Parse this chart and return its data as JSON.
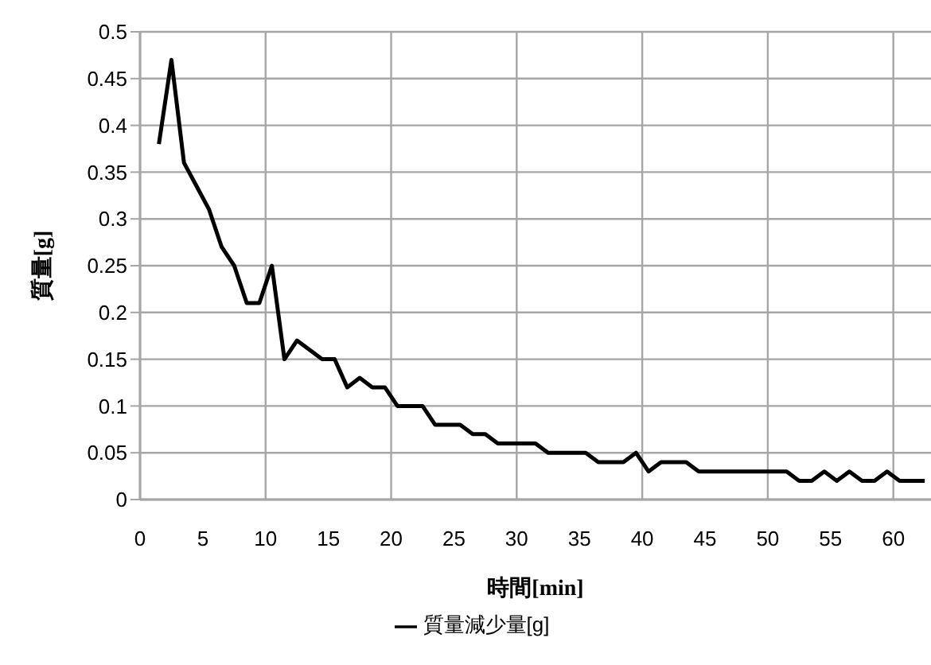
{
  "chart_data": {
    "type": "line",
    "xlabel": "時間[min]",
    "ylabel": "質量[g]",
    "x": [
      1.5,
      2.5,
      3.5,
      4.5,
      5.5,
      6.5,
      7.5,
      8.5,
      9.5,
      10.5,
      11.5,
      12.5,
      13.5,
      14.5,
      15.5,
      16.5,
      17.5,
      18.5,
      19.5,
      20.5,
      21.5,
      22.5,
      23.5,
      24.5,
      25.5,
      26.5,
      27.5,
      28.5,
      29.5,
      30.5,
      31.5,
      32.5,
      33.5,
      34.5,
      35.5,
      36.5,
      37.5,
      38.5,
      39.5,
      40.5,
      41.5,
      42.5,
      43.5,
      44.5,
      45.5,
      46.5,
      47.5,
      48.5,
      49.5,
      50.5,
      51.5,
      52.5,
      53.5,
      54.5,
      55.5,
      56.5,
      57.5,
      58.5,
      59.5,
      60.5,
      61.5,
      62.5
    ],
    "series": [
      {
        "name": "質量減少量[g]",
        "color": "#000000",
        "values": [
          0.38,
          0.47,
          0.36,
          0.335,
          0.31,
          0.27,
          0.25,
          0.21,
          0.21,
          0.25,
          0.15,
          0.17,
          0.16,
          0.15,
          0.15,
          0.12,
          0.13,
          0.12,
          0.12,
          0.1,
          0.1,
          0.1,
          0.08,
          0.08,
          0.08,
          0.07,
          0.07,
          0.06,
          0.06,
          0.06,
          0.06,
          0.05,
          0.05,
          0.05,
          0.05,
          0.04,
          0.04,
          0.04,
          0.05,
          0.03,
          0.04,
          0.04,
          0.04,
          0.03,
          0.03,
          0.03,
          0.03,
          0.03,
          0.03,
          0.03,
          0.03,
          0.02,
          0.02,
          0.03,
          0.02,
          0.03,
          0.02,
          0.02,
          0.03,
          0.02,
          0.02,
          0.02
        ]
      }
    ],
    "xlim": [
      0,
      63
    ],
    "xticks": [
      0,
      5,
      10,
      15,
      20,
      25,
      30,
      35,
      40,
      45,
      50,
      55,
      60
    ],
    "ylim": [
      0,
      0.5
    ],
    "yticks": [
      0,
      0.05,
      0.1,
      0.15,
      0.2,
      0.25,
      0.3,
      0.35,
      0.4,
      0.45,
      0.5
    ],
    "grid": true,
    "legend": "bottom",
    "marker": "none",
    "line_style": "solid"
  }
}
